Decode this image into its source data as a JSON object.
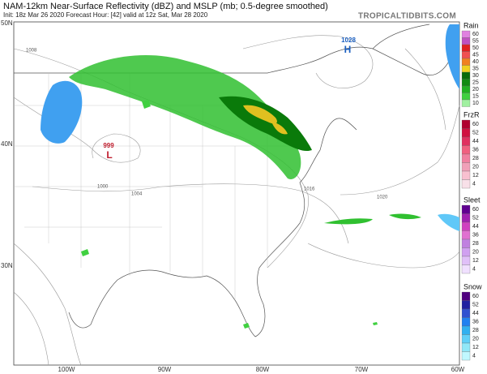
{
  "header": {
    "title": "NAM-12km Near-Surface Reflectivity (dBZ) and MSLP (mb; 0.5-degree smoothed)",
    "subtitle": "Init: 18z Mar 26 2020   Forecast Hour: [42]   valid at 12z Sat, Mar 28 2020",
    "brand": "TROPICALTIDBITS.COM"
  },
  "map": {
    "latitude_labels": [
      "50N",
      "40N",
      "30N"
    ],
    "longitude_labels": [
      "100W",
      "90W",
      "80W",
      "70W",
      "60W"
    ],
    "pressure_centers": [
      {
        "label": "H",
        "value": "1028"
      },
      {
        "label": "L",
        "value": "999"
      }
    ],
    "isobar_labels": [
      "1008",
      "1000",
      "1004",
      "1016",
      "1020"
    ]
  },
  "legend": [
    {
      "title": "Rain",
      "ticks": [
        "60",
        "55",
        "50",
        "45",
        "40",
        "35",
        "30",
        "25",
        "20",
        "15",
        "10"
      ],
      "colors": [
        "#e080e0",
        "#c050c0",
        "#e02020",
        "#f05050",
        "#f08020",
        "#f0d020",
        "#0a6a0a",
        "#108a10",
        "#20b020",
        "#40d040",
        "#a0f0a0"
      ]
    },
    {
      "title": "FrzR",
      "ticks": [
        "60",
        "52",
        "44",
        "36",
        "28",
        "20",
        "12",
        "4"
      ],
      "colors": [
        "#b00030",
        "#d01040",
        "#e03060",
        "#f06080",
        "#f080a0",
        "#f0a0b8",
        "#f8c0d0",
        "#f8e0e8"
      ]
    },
    {
      "title": "Sleet",
      "ticks": [
        "60",
        "52",
        "44",
        "36",
        "28",
        "20",
        "12",
        "4"
      ],
      "colors": [
        "#600090",
        "#a020b0",
        "#d040c0",
        "#e070d0",
        "#c080e0",
        "#d0a0f0",
        "#e0c0f8",
        "#f0e0ff"
      ]
    },
    {
      "title": "Snow",
      "ticks": [
        "60",
        "52",
        "44",
        "36",
        "28",
        "20",
        "12",
        "4"
      ],
      "colors": [
        "#500080",
        "#2020a0",
        "#3050d0",
        "#2080f0",
        "#30b0f0",
        "#60d0f8",
        "#90e8f8",
        "#c0f8ff"
      ]
    }
  ]
}
